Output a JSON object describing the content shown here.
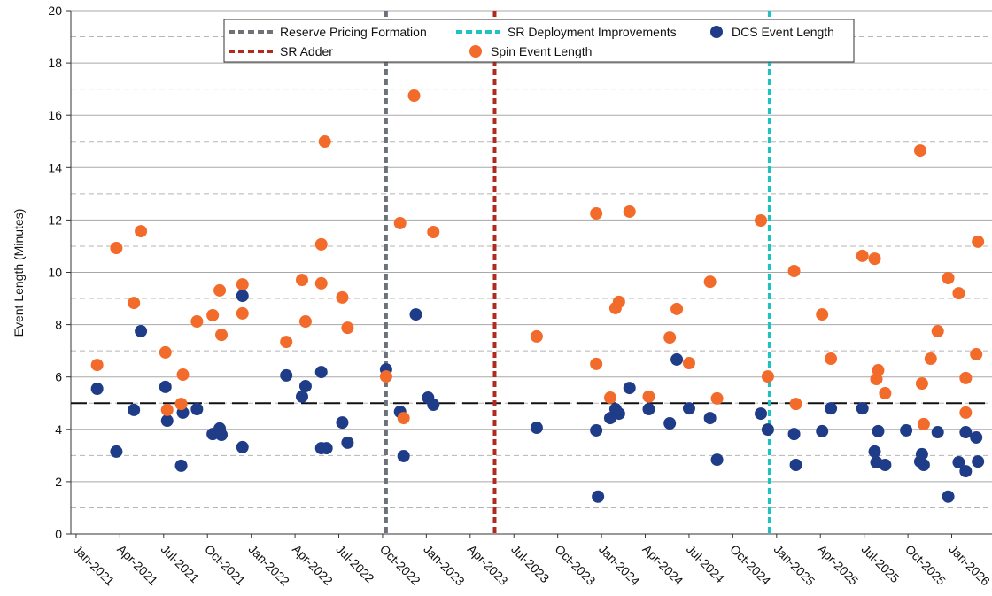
{
  "chart_data": {
    "type": "scatter",
    "y_label": "Event Length (Minutes)",
    "xlim": [
      2020.97,
      2026.23
    ],
    "ylim": [
      0,
      20
    ],
    "yticks": [
      0,
      2,
      4,
      6,
      8,
      10,
      12,
      14,
      16,
      18,
      20
    ],
    "minor_yticks": [
      1,
      3,
      5,
      7,
      9,
      11,
      13,
      15,
      17,
      19
    ],
    "xticks": [
      {
        "value": 2021,
        "label": "Jan-2021"
      },
      {
        "value": 2021.25,
        "label": "Apr-2021"
      },
      {
        "value": 2021.5,
        "label": "Jul-2021"
      },
      {
        "value": 2021.75,
        "label": "Oct-2021"
      },
      {
        "value": 2022,
        "label": "Jan-2022"
      },
      {
        "value": 2022.25,
        "label": "Apr-2022"
      },
      {
        "value": 2022.5,
        "label": "Jul-2022"
      },
      {
        "value": 2022.75,
        "label": "Oct-2022"
      },
      {
        "value": 2023,
        "label": "Jan-2023"
      },
      {
        "value": 2023.25,
        "label": "Apr-2023"
      },
      {
        "value": 2023.5,
        "label": "Jul-2023"
      },
      {
        "value": 2023.75,
        "label": "Oct-2023"
      },
      {
        "value": 2024,
        "label": "Jan-2024"
      },
      {
        "value": 2024.25,
        "label": "Apr-2024"
      },
      {
        "value": 2024.5,
        "label": "Jul-2024"
      },
      {
        "value": 2024.75,
        "label": "Oct-2024"
      },
      {
        "value": 2025,
        "label": "Jan-2025"
      },
      {
        "value": 2025.25,
        "label": "Apr-2025"
      },
      {
        "value": 2025.5,
        "label": "Jul-2025"
      },
      {
        "value": 2025.75,
        "label": "Oct-2025"
      },
      {
        "value": 2026,
        "label": "Jan-2026"
      }
    ],
    "grid": true,
    "threshold": 5,
    "reference_lines": [
      {
        "name": "Reserve Pricing Formation",
        "color": "#6d7278",
        "x": 2022.77
      },
      {
        "name": "SR Adder",
        "color": "#b22a1e",
        "x": 2023.39
      },
      {
        "name": "SR Deployment Improvements",
        "color": "#1fc2c2",
        "x": 2024.96
      }
    ],
    "series": [
      {
        "name": "DCS Event Length",
        "color": "#1f3c88",
        "x": [
          2021.12,
          2021.23,
          2021.33,
          2021.37,
          2021.51,
          2021.52,
          2021.6,
          2021.61,
          2021.69,
          2021.78,
          2021.82,
          2021.83,
          2021.95,
          2021.95,
          2022.2,
          2022.29,
          2022.31,
          2022.4,
          2022.4,
          2022.43,
          2022.52,
          2022.55,
          2022.77,
          2022.85,
          2022.87,
          2022.94,
          2023.01,
          2023.04,
          2023.63,
          2023.97,
          2023.98,
          2024.05,
          2024.08,
          2024.1,
          2024.16,
          2024.27,
          2024.39,
          2024.43,
          2024.5,
          2024.62,
          2024.66,
          2024.91,
          2024.95,
          2025.1,
          2025.11,
          2025.26,
          2025.31,
          2025.49,
          2025.56,
          2025.58,
          2025.57,
          2025.62,
          2025.74,
          2025.82,
          2025.83,
          2025.84,
          2025.92,
          2025.98,
          2026.04,
          2026.08,
          2026.08,
          2026.14,
          2026.15
        ],
        "values": [
          5.55,
          3.15,
          4.74,
          7.75,
          5.62,
          4.33,
          2.61,
          4.64,
          4.77,
          3.82,
          4.03,
          3.79,
          9.1,
          3.32,
          6.06,
          5.25,
          5.65,
          6.19,
          3.28,
          3.28,
          4.26,
          3.49,
          6.29,
          4.67,
          2.98,
          8.39,
          5.21,
          4.94,
          4.06,
          3.96,
          1.43,
          4.43,
          4.77,
          4.6,
          5.58,
          4.77,
          4.23,
          6.67,
          4.8,
          4.43,
          2.84,
          4.6,
          3.99,
          3.82,
          2.64,
          3.93,
          4.8,
          4.8,
          3.15,
          3.93,
          2.74,
          2.64,
          3.96,
          2.77,
          3.05,
          2.64,
          3.89,
          1.43,
          2.74,
          2.4,
          3.89,
          3.69,
          2.77
        ]
      },
      {
        "name": "Spin Event Length",
        "color": "#f26b2a",
        "x": [
          2021.12,
          2021.23,
          2021.33,
          2021.37,
          2021.51,
          2021.52,
          2021.6,
          2021.61,
          2021.69,
          2021.78,
          2021.82,
          2021.83,
          2021.95,
          2021.95,
          2022.2,
          2022.29,
          2022.31,
          2022.4,
          2022.4,
          2022.42,
          2022.52,
          2022.55,
          2022.77,
          2022.85,
          2022.87,
          2022.93,
          2023.04,
          2023.63,
          2023.97,
          2023.97,
          2024.05,
          2024.08,
          2024.1,
          2024.16,
          2024.27,
          2024.39,
          2024.43,
          2024.5,
          2024.62,
          2024.66,
          2024.91,
          2024.95,
          2025.1,
          2025.11,
          2025.26,
          2025.31,
          2025.49,
          2025.56,
          2025.58,
          2025.57,
          2025.62,
          2025.88,
          2025.82,
          2025.83,
          2025.84,
          2025.92,
          2025.98,
          2026.04,
          2026.08,
          2026.08,
          2026.14,
          2026.15
        ],
        "values": [
          6.46,
          10.93,
          8.83,
          11.57,
          6.94,
          4.74,
          4.97,
          6.09,
          8.12,
          8.36,
          9.31,
          7.61,
          9.54,
          8.43,
          7.34,
          9.71,
          8.12,
          11.07,
          9.58,
          14.99,
          9.04,
          7.88,
          6.02,
          11.88,
          4.43,
          16.75,
          11.54,
          7.55,
          12.25,
          6.5,
          5.21,
          8.63,
          8.87,
          12.32,
          5.25,
          7.51,
          8.6,
          6.53,
          9.64,
          5.18,
          11.98,
          6.02,
          10.05,
          4.97,
          8.39,
          6.7,
          10.63,
          10.52,
          6.26,
          5.92,
          5.38,
          6.7,
          14.65,
          5.75,
          4.2,
          7.75,
          9.78,
          9.2,
          5.96,
          4.64,
          6.87,
          11.17
        ]
      }
    ]
  }
}
